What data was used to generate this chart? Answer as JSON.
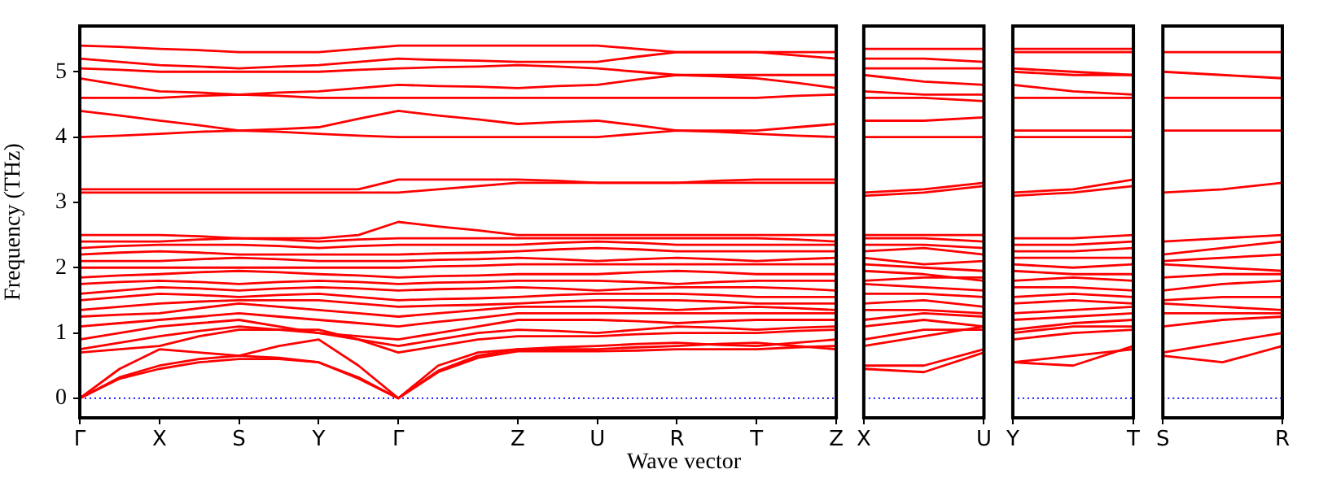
{
  "chart_data": [
    {
      "type": "line",
      "ylabel": "Frequency (THz)",
      "xlabel": "Wave vector",
      "categories": [
        "Γ",
        null,
        "X",
        null,
        "S",
        null,
        "Y",
        null,
        "Γ",
        null,
        null,
        "Z",
        null,
        "U",
        null,
        "R",
        null,
        "T",
        null,
        "Z"
      ],
      "ylim": [
        -0.3,
        5.7
      ],
      "yticks": [
        0,
        1,
        2,
        3,
        4,
        5
      ],
      "ref_lines": [
        {
          "axis": "y",
          "value": 0,
          "color": "#0000ff",
          "line_style": "dotted"
        }
      ],
      "series": [
        {
          "color": "#ff0000",
          "values": [
            0,
            0.3,
            0.45,
            0.55,
            0.6,
            0.6,
            0.55,
            0.3,
            0,
            0.4,
            0.62,
            0.72,
            0.72,
            0.72,
            0.73,
            0.75,
            0.75,
            0.75,
            0.78,
            0.8
          ]
        },
        {
          "color": "#ff0000",
          "values": [
            0,
            0.32,
            0.5,
            0.6,
            0.65,
            0.62,
            0.55,
            0.32,
            0,
            0.42,
            0.65,
            0.75,
            0.78,
            0.8,
            0.83,
            0.85,
            0.82,
            0.8,
            0.85,
            0.9
          ]
        },
        {
          "color": "#ff0000",
          "values": [
            0,
            0.45,
            0.75,
            0.7,
            0.65,
            0.8,
            0.9,
            0.5,
            0,
            0.5,
            0.7,
            0.75,
            0.75,
            0.75,
            0.78,
            0.8,
            0.83,
            0.85,
            0.8,
            0.75
          ]
        },
        {
          "color": "#ff0000",
          "values": [
            0.7,
            0.75,
            0.8,
            0.95,
            1.05,
            1.05,
            1.05,
            0.9,
            0.7,
            0.8,
            0.9,
            0.95,
            0.95,
            0.95,
            0.98,
            1.0,
            1.0,
            1.0,
            1.03,
            1.05
          ]
        },
        {
          "color": "#ff0000",
          "values": [
            0.75,
            0.85,
            0.95,
            1.03,
            1.1,
            1.05,
            1.0,
            0.9,
            0.8,
            0.9,
            1.0,
            1.05,
            1.03,
            1.0,
            1.05,
            1.1,
            1.08,
            1.05,
            1.08,
            1.1
          ]
        },
        {
          "color": "#ff0000",
          "values": [
            0.9,
            1.0,
            1.1,
            1.15,
            1.2,
            1.1,
            1.0,
            0.95,
            0.9,
            1.0,
            1.1,
            1.2,
            1.2,
            1.2,
            1.18,
            1.15,
            1.18,
            1.2,
            1.2,
            1.2
          ]
        },
        {
          "color": "#ff0000",
          "values": [
            1.1,
            1.15,
            1.2,
            1.25,
            1.3,
            1.25,
            1.2,
            1.15,
            1.1,
            1.17,
            1.23,
            1.3,
            1.3,
            1.3,
            1.3,
            1.3,
            1.3,
            1.3,
            1.3,
            1.3
          ]
        },
        {
          "color": "#ff0000",
          "values": [
            1.25,
            1.28,
            1.3,
            1.38,
            1.45,
            1.4,
            1.35,
            1.3,
            1.25,
            1.3,
            1.35,
            1.4,
            1.4,
            1.4,
            1.38,
            1.35,
            1.38,
            1.4,
            1.38,
            1.35
          ]
        },
        {
          "color": "#ff0000",
          "values": [
            1.35,
            1.4,
            1.45,
            1.48,
            1.5,
            1.5,
            1.5,
            1.45,
            1.4,
            1.42,
            1.43,
            1.45,
            1.48,
            1.5,
            1.5,
            1.5,
            1.48,
            1.45,
            1.45,
            1.45
          ]
        },
        {
          "color": "#ff0000",
          "values": [
            1.5,
            1.55,
            1.6,
            1.58,
            1.55,
            1.58,
            1.6,
            1.55,
            1.5,
            1.52,
            1.53,
            1.55,
            1.58,
            1.6,
            1.6,
            1.6,
            1.58,
            1.55,
            1.55,
            1.55
          ]
        },
        {
          "color": "#ff0000",
          "values": [
            1.6,
            1.65,
            1.7,
            1.68,
            1.65,
            1.68,
            1.7,
            1.68,
            1.65,
            1.67,
            1.68,
            1.7,
            1.68,
            1.65,
            1.68,
            1.7,
            1.7,
            1.7,
            1.68,
            1.65
          ]
        },
        {
          "color": "#ff0000",
          "values": [
            1.75,
            1.78,
            1.8,
            1.78,
            1.75,
            1.78,
            1.8,
            1.78,
            1.75,
            1.77,
            1.78,
            1.8,
            1.8,
            1.8,
            1.78,
            1.75,
            1.78,
            1.8,
            1.8,
            1.8
          ]
        },
        {
          "color": "#ff0000",
          "values": [
            1.85,
            1.88,
            1.9,
            1.93,
            1.95,
            1.93,
            1.9,
            1.88,
            1.85,
            1.87,
            1.88,
            1.9,
            1.9,
            1.9,
            1.93,
            1.95,
            1.93,
            1.9,
            1.9,
            1.9
          ]
        },
        {
          "color": "#ff0000",
          "values": [
            2.0,
            2.0,
            2.0,
            2.0,
            2.0,
            2.0,
            2.0,
            2.0,
            2.0,
            2.02,
            2.03,
            2.05,
            2.05,
            2.05,
            2.05,
            2.05,
            2.05,
            2.05,
            2.05,
            2.05
          ]
        },
        {
          "color": "#ff0000",
          "values": [
            2.1,
            2.1,
            2.1,
            2.13,
            2.15,
            2.13,
            2.1,
            2.1,
            2.1,
            2.12,
            2.13,
            2.15,
            2.13,
            2.1,
            2.13,
            2.15,
            2.13,
            2.1,
            2.13,
            2.15
          ]
        },
        {
          "color": "#ff0000",
          "values": [
            2.2,
            2.23,
            2.25,
            2.23,
            2.2,
            2.2,
            2.2,
            2.2,
            2.2,
            2.22,
            2.23,
            2.25,
            2.28,
            2.3,
            2.28,
            2.25,
            2.25,
            2.25,
            2.25,
            2.25
          ]
        },
        {
          "color": "#ff0000",
          "values": [
            2.3,
            2.33,
            2.35,
            2.35,
            2.35,
            2.33,
            2.3,
            2.33,
            2.35,
            2.35,
            2.35,
            2.35,
            2.38,
            2.4,
            2.38,
            2.35,
            2.35,
            2.35,
            2.35,
            2.35
          ]
        },
        {
          "color": "#ff0000",
          "values": [
            2.4,
            2.4,
            2.4,
            2.43,
            2.45,
            2.43,
            2.4,
            2.43,
            2.45,
            2.45,
            2.45,
            2.45,
            2.45,
            2.45,
            2.45,
            2.45,
            2.45,
            2.45,
            2.43,
            2.4
          ]
        },
        {
          "color": "#ff0000",
          "values": [
            2.5,
            2.5,
            2.5,
            2.48,
            2.45,
            2.45,
            2.45,
            2.5,
            2.7,
            2.63,
            2.57,
            2.5,
            2.5,
            2.5,
            2.5,
            2.5,
            2.5,
            2.5,
            2.5,
            2.5
          ]
        },
        {
          "color": "#ff0000",
          "values": [
            3.15,
            3.15,
            3.15,
            3.15,
            3.15,
            3.15,
            3.15,
            3.15,
            3.15,
            3.2,
            3.25,
            3.3,
            3.3,
            3.3,
            3.3,
            3.3,
            3.3,
            3.3,
            3.3,
            3.3
          ]
        },
        {
          "color": "#ff0000",
          "values": [
            3.2,
            3.2,
            3.2,
            3.2,
            3.2,
            3.2,
            3.2,
            3.2,
            3.35,
            3.35,
            3.35,
            3.35,
            3.33,
            3.3,
            3.3,
            3.3,
            3.33,
            3.35,
            3.35,
            3.35
          ]
        },
        {
          "color": "#ff0000",
          "values": [
            4.0,
            4.02,
            4.05,
            4.08,
            4.1,
            4.08,
            4.05,
            4.02,
            4.0,
            4.0,
            4.0,
            4.0,
            4.0,
            4.0,
            4.05,
            4.1,
            4.08,
            4.05,
            4.02,
            4.0
          ]
        },
        {
          "color": "#ff0000",
          "values": [
            4.4,
            4.33,
            4.25,
            4.18,
            4.1,
            4.12,
            4.15,
            4.28,
            4.4,
            4.33,
            4.27,
            4.2,
            4.23,
            4.25,
            4.18,
            4.1,
            4.1,
            4.1,
            4.15,
            4.2
          ]
        },
        {
          "color": "#ff0000",
          "values": [
            4.6,
            4.6,
            4.6,
            4.63,
            4.65,
            4.63,
            4.6,
            4.6,
            4.6,
            4.6,
            4.6,
            4.6,
            4.6,
            4.6,
            4.6,
            4.6,
            4.6,
            4.6,
            4.63,
            4.65
          ]
        },
        {
          "color": "#ff0000",
          "values": [
            4.9,
            4.8,
            4.7,
            4.68,
            4.65,
            4.68,
            4.7,
            4.75,
            4.8,
            4.78,
            4.77,
            4.75,
            4.78,
            4.8,
            4.88,
            4.95,
            4.93,
            4.9,
            4.83,
            4.75
          ]
        },
        {
          "color": "#ff0000",
          "values": [
            5.05,
            5.03,
            5.0,
            5.0,
            5.0,
            5.0,
            5.0,
            5.03,
            5.05,
            5.07,
            5.08,
            5.1,
            5.08,
            5.05,
            5.0,
            4.95,
            4.95,
            4.95,
            4.95,
            4.95
          ]
        },
        {
          "color": "#ff0000",
          "values": [
            5.2,
            5.15,
            5.1,
            5.08,
            5.05,
            5.08,
            5.1,
            5.15,
            5.2,
            5.18,
            5.17,
            5.15,
            5.15,
            5.15,
            5.23,
            5.3,
            5.3,
            5.3,
            5.25,
            5.2
          ]
        },
        {
          "color": "#ff0000",
          "values": [
            5.4,
            5.38,
            5.35,
            5.33,
            5.3,
            5.3,
            5.3,
            5.35,
            5.4,
            5.4,
            5.4,
            5.4,
            5.4,
            5.4,
            5.35,
            5.3,
            5.3,
            5.3,
            5.3,
            5.3
          ]
        }
      ]
    },
    {
      "type": "line",
      "tick_labels": "x",
      "categories": [
        "X",
        null,
        "U"
      ],
      "ylim": [
        -0.3,
        5.7
      ],
      "ref_lines": [
        {
          "axis": "y",
          "value": 0,
          "color": "#0000ff",
          "line_style": "dotted"
        }
      ],
      "series": [
        {
          "color": "#ff0000",
          "values": [
            0.45,
            0.4,
            0.7
          ]
        },
        {
          "color": "#ff0000",
          "values": [
            0.5,
            0.5,
            0.75
          ]
        },
        {
          "color": "#ff0000",
          "values": [
            0.8,
            0.95,
            1.1
          ]
        },
        {
          "color": "#ff0000",
          "values": [
            0.9,
            1.05,
            1.05
          ]
        },
        {
          "color": "#ff0000",
          "values": [
            1.1,
            1.2,
            1.1
          ]
        },
        {
          "color": "#ff0000",
          "values": [
            1.2,
            1.3,
            1.25
          ]
        },
        {
          "color": "#ff0000",
          "values": [
            1.35,
            1.35,
            1.3
          ]
        },
        {
          "color": "#ff0000",
          "values": [
            1.45,
            1.5,
            1.4
          ]
        },
        {
          "color": "#ff0000",
          "values": [
            1.6,
            1.6,
            1.55
          ]
        },
        {
          "color": "#ff0000",
          "values": [
            1.75,
            1.7,
            1.65
          ]
        },
        {
          "color": "#ff0000",
          "values": [
            1.8,
            1.85,
            1.85
          ]
        },
        {
          "color": "#ff0000",
          "values": [
            1.95,
            1.9,
            1.8
          ]
        },
        {
          "color": "#ff0000",
          "values": [
            2.05,
            2.0,
            1.95
          ]
        },
        {
          "color": "#ff0000",
          "values": [
            2.15,
            2.05,
            2.1
          ]
        },
        {
          "color": "#ff0000",
          "values": [
            2.25,
            2.3,
            2.2
          ]
        },
        {
          "color": "#ff0000",
          "values": [
            2.35,
            2.35,
            2.3
          ]
        },
        {
          "color": "#ff0000",
          "values": [
            2.45,
            2.45,
            2.4
          ]
        },
        {
          "color": "#ff0000",
          "values": [
            2.5,
            2.5,
            2.5
          ]
        },
        {
          "color": "#ff0000",
          "values": [
            3.15,
            3.2,
            3.3
          ]
        },
        {
          "color": "#ff0000",
          "values": [
            3.1,
            3.15,
            3.25
          ]
        },
        {
          "color": "#ff0000",
          "values": [
            4.0,
            4.0,
            4.0
          ]
        },
        {
          "color": "#ff0000",
          "values": [
            4.25,
            4.25,
            4.3
          ]
        },
        {
          "color": "#ff0000",
          "values": [
            4.6,
            4.6,
            4.55
          ]
        },
        {
          "color": "#ff0000",
          "values": [
            4.7,
            4.65,
            4.65
          ]
        },
        {
          "color": "#ff0000",
          "values": [
            4.95,
            4.85,
            4.8
          ]
        },
        {
          "color": "#ff0000",
          "values": [
            5.05,
            5.05,
            5.05
          ]
        },
        {
          "color": "#ff0000",
          "values": [
            5.2,
            5.2,
            5.15
          ]
        },
        {
          "color": "#ff0000",
          "values": [
            5.35,
            5.35,
            5.35
          ]
        }
      ]
    },
    {
      "type": "line",
      "tick_labels": "x",
      "categories": [
        "Y",
        null,
        "T"
      ],
      "ylim": [
        -0.3,
        5.7
      ],
      "ref_lines": [
        {
          "axis": "y",
          "value": 0,
          "color": "#0000ff",
          "line_style": "dotted"
        }
      ],
      "series": [
        {
          "color": "#ff0000",
          "values": [
            0.55,
            0.5,
            0.8
          ]
        },
        {
          "color": "#ff0000",
          "values": [
            0.55,
            0.65,
            0.75
          ]
        },
        {
          "color": "#ff0000",
          "values": [
            0.9,
            1.0,
            1.05
          ]
        },
        {
          "color": "#ff0000",
          "values": [
            1.0,
            1.1,
            1.1
          ]
        },
        {
          "color": "#ff0000",
          "values": [
            1.05,
            1.15,
            1.2
          ]
        },
        {
          "color": "#ff0000",
          "values": [
            1.2,
            1.25,
            1.3
          ]
        },
        {
          "color": "#ff0000",
          "values": [
            1.3,
            1.35,
            1.4
          ]
        },
        {
          "color": "#ff0000",
          "values": [
            1.45,
            1.5,
            1.45
          ]
        },
        {
          "color": "#ff0000",
          "values": [
            1.55,
            1.6,
            1.55
          ]
        },
        {
          "color": "#ff0000",
          "values": [
            1.7,
            1.7,
            1.65
          ]
        },
        {
          "color": "#ff0000",
          "values": [
            1.8,
            1.85,
            1.8
          ]
        },
        {
          "color": "#ff0000",
          "values": [
            1.95,
            1.9,
            1.9
          ]
        },
        {
          "color": "#ff0000",
          "values": [
            2.05,
            2.0,
            2.05
          ]
        },
        {
          "color": "#ff0000",
          "values": [
            2.15,
            2.15,
            2.15
          ]
        },
        {
          "color": "#ff0000",
          "values": [
            2.25,
            2.25,
            2.3
          ]
        },
        {
          "color": "#ff0000",
          "values": [
            2.35,
            2.35,
            2.4
          ]
        },
        {
          "color": "#ff0000",
          "values": [
            2.45,
            2.45,
            2.5
          ]
        },
        {
          "color": "#ff0000",
          "values": [
            3.1,
            3.15,
            3.25
          ]
        },
        {
          "color": "#ff0000",
          "values": [
            3.15,
            3.2,
            3.35
          ]
        },
        {
          "color": "#ff0000",
          "values": [
            4.0,
            4.0,
            4.0
          ]
        },
        {
          "color": "#ff0000",
          "values": [
            4.1,
            4.1,
            4.1
          ]
        },
        {
          "color": "#ff0000",
          "values": [
            4.6,
            4.6,
            4.6
          ]
        },
        {
          "color": "#ff0000",
          "values": [
            4.8,
            4.7,
            4.65
          ]
        },
        {
          "color": "#ff0000",
          "values": [
            5.0,
            4.95,
            4.95
          ]
        },
        {
          "color": "#ff0000",
          "values": [
            5.05,
            5.0,
            4.95
          ]
        },
        {
          "color": "#ff0000",
          "values": [
            5.3,
            5.3,
            5.3
          ]
        },
        {
          "color": "#ff0000",
          "values": [
            5.35,
            5.35,
            5.35
          ]
        }
      ]
    },
    {
      "type": "line",
      "tick_labels": "x",
      "categories": [
        "S",
        null,
        "R"
      ],
      "ylim": [
        -0.3,
        5.7
      ],
      "ref_lines": [
        {
          "axis": "y",
          "value": 0,
          "color": "#0000ff",
          "line_style": "dotted"
        }
      ],
      "series": [
        {
          "color": "#ff0000",
          "values": [
            0.65,
            0.55,
            0.8
          ]
        },
        {
          "color": "#ff0000",
          "values": [
            0.7,
            0.85,
            1.0
          ]
        },
        {
          "color": "#ff0000",
          "values": [
            1.1,
            1.2,
            1.25
          ]
        },
        {
          "color": "#ff0000",
          "values": [
            1.3,
            1.3,
            1.3
          ]
        },
        {
          "color": "#ff0000",
          "values": [
            1.45,
            1.4,
            1.35
          ]
        },
        {
          "color": "#ff0000",
          "values": [
            1.5,
            1.55,
            1.55
          ]
        },
        {
          "color": "#ff0000",
          "values": [
            1.65,
            1.75,
            1.8
          ]
        },
        {
          "color": "#ff0000",
          "values": [
            1.85,
            1.9,
            1.9
          ]
        },
        {
          "color": "#ff0000",
          "values": [
            2.05,
            2.0,
            1.95
          ]
        },
        {
          "color": "#ff0000",
          "values": [
            2.1,
            2.15,
            2.2
          ]
        },
        {
          "color": "#ff0000",
          "values": [
            2.2,
            2.3,
            2.4
          ]
        },
        {
          "color": "#ff0000",
          "values": [
            2.4,
            2.45,
            2.5
          ]
        },
        {
          "color": "#ff0000",
          "values": [
            3.15,
            3.2,
            3.3
          ]
        },
        {
          "color": "#ff0000",
          "values": [
            4.1,
            4.1,
            4.1
          ]
        },
        {
          "color": "#ff0000",
          "values": [
            4.6,
            4.6,
            4.6
          ]
        },
        {
          "color": "#ff0000",
          "values": [
            5.0,
            4.95,
            4.9
          ]
        },
        {
          "color": "#ff0000",
          "values": [
            5.3,
            5.3,
            5.3
          ]
        }
      ]
    }
  ]
}
